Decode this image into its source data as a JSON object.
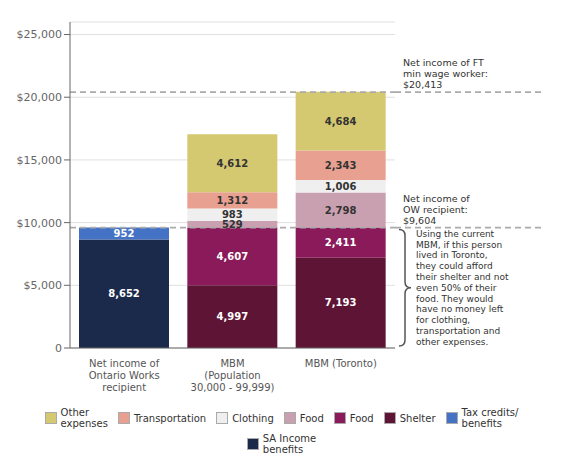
{
  "chart_data": {
    "type": "bar",
    "stacked": true,
    "data_labels": true,
    "grid": true,
    "legend": "bottom",
    "categories": [
      "Net income of\nOntario Works\nrecipient",
      "MBM\n(Population\n30,000 - 99,999)",
      "MBM (Toronto)"
    ],
    "series": [
      {
        "name": "SA Income\nbenefits",
        "color": "#1b2a4a",
        "values": [
          8652,
          null,
          null
        ],
        "value_labels": [
          "8,652",
          null,
          null
        ]
      },
      {
        "name": "Tax credits/\nbenefits",
        "color": "#4472c4",
        "values": [
          952,
          null,
          null
        ],
        "value_labels": [
          "952",
          null,
          null
        ]
      },
      {
        "name": "Shelter",
        "color": "#5e1535",
        "values": [
          null,
          4997,
          7193
        ],
        "value_labels": [
          null,
          "4,997",
          "7,193"
        ]
      },
      {
        "name": "Food",
        "color": "#8b1a5a",
        "values": [
          null,
          4607,
          2411
        ],
        "value_labels": [
          null,
          "4,607",
          "2,411"
        ]
      },
      {
        "name": "Food",
        "color": "#c9a0b0",
        "values": [
          null,
          529,
          2798
        ],
        "value_labels": [
          null,
          "529",
          "2,798"
        ]
      },
      {
        "name": "Clothing",
        "color": "#f0efef",
        "values": [
          null,
          983,
          1006
        ],
        "value_labels": [
          null,
          "983",
          "1,006"
        ]
      },
      {
        "name": "Transportation",
        "color": "#e8a090",
        "values": [
          null,
          1312,
          2343
        ],
        "value_labels": [
          null,
          "1,312",
          "2,343"
        ]
      },
      {
        "name": "Other\nexpenses",
        "color": "#d4c870",
        "values": [
          null,
          4612,
          4684
        ],
        "value_labels": [
          null,
          "4,612",
          "4,684"
        ]
      }
    ],
    "ylim": [
      0,
      26000
    ],
    "yticks": [
      0,
      {
        "value": 5000,
        "label": "$5,000"
      },
      {
        "value": 10000,
        "label": "$10,000"
      },
      {
        "value": 15000,
        "label": "$15,000"
      },
      {
        "value": 20000,
        "label": "$20,000"
      },
      {
        "value": 25000,
        "label": "$25,000"
      }
    ],
    "reference_lines": [
      {
        "value": 9604,
        "label": "Net income of\nOW recipient:\n$9,604"
      },
      {
        "value": 20413,
        "label": "Net income of FT\nmin wage worker:\n$20,413"
      }
    ],
    "annotations": [
      {
        "text": "Using the current\nMBM, if this person\nlived in Toronto,\nthey could afford\ntheir shelter and not\neven 50% of their\nfood. They would\nhave no money left\nfor clothing,\ntransportation and\nother expenses.",
        "from": 0,
        "to": 9604
      }
    ]
  }
}
